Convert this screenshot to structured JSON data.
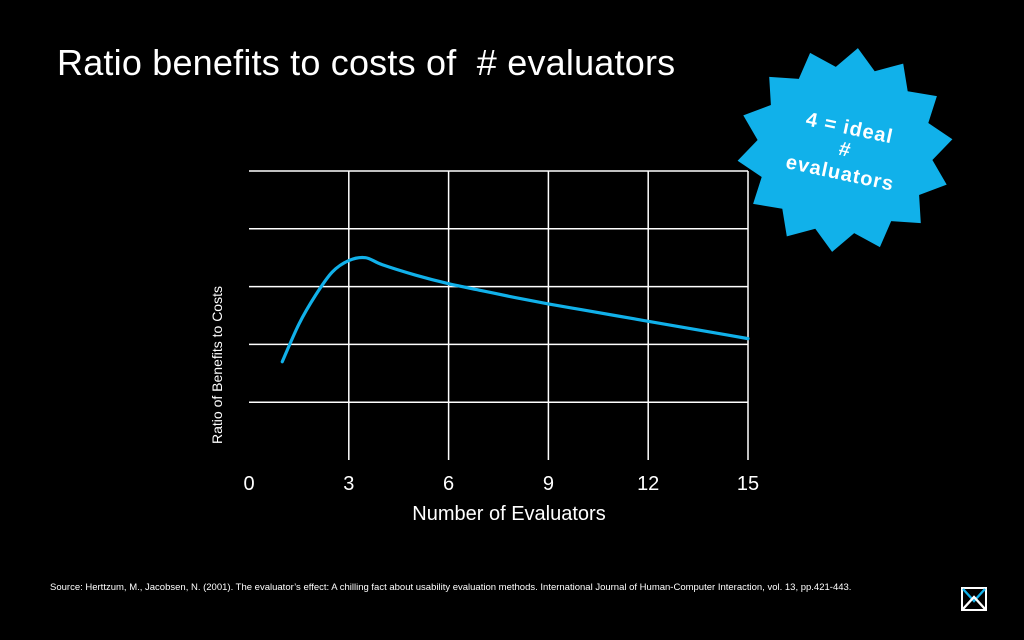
{
  "title": "Ratio benefits to costs of  # evaluators",
  "badge": {
    "lines": [
      "4 = ideal",
      "#",
      "evaluators"
    ],
    "color": "#11b1ea"
  },
  "chart_data": {
    "type": "line",
    "title": "Ratio benefits to costs of  # evaluators",
    "xlabel": "Number of Evaluators",
    "ylabel": "Ratio of Benefits to Costs",
    "xticks": [
      0,
      3,
      6,
      9,
      12,
      15
    ],
    "xlim": [
      0,
      15
    ],
    "ylim": [
      0,
      5
    ],
    "ygridlines": [
      1,
      2,
      3,
      4,
      5
    ],
    "grid": true,
    "series": [
      {
        "name": "Ratio of Benefits to Costs",
        "color": "#11b1ea",
        "x": [
          1,
          1.5,
          2,
          2.5,
          3,
          3.5,
          4,
          5,
          6,
          7,
          8,
          9,
          10,
          11,
          12,
          13,
          14,
          15
        ],
        "y": [
          1.7,
          2.35,
          2.85,
          3.25,
          3.45,
          3.5,
          3.38,
          3.2,
          3.05,
          2.93,
          2.81,
          2.7,
          2.6,
          2.5,
          2.4,
          2.3,
          2.2,
          2.1
        ]
      }
    ]
  },
  "source": "Source: Herttzum, M., Jacobsen, N. (2001). The evaluator’s effect: A chilling fact about usability evaluation methods. International Journal of Human-Computer Interaction, vol. 13, pp.421-443.",
  "logo": {
    "name": "nn-logo",
    "color": "#11b1ea"
  }
}
